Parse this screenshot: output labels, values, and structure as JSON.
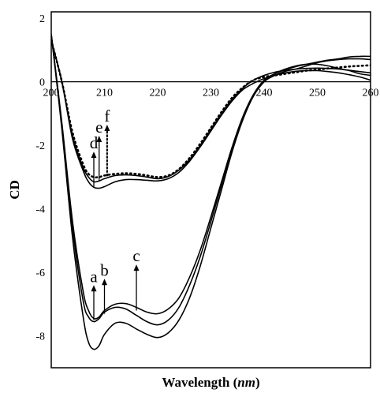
{
  "chart_data": {
    "type": "line",
    "title": "",
    "xlabel_main": "Wavelength (",
    "xlabel_unit": "nm",
    "xlabel_close": ")",
    "ylabel": "CD",
    "xlim": [
      200,
      260
    ],
    "ylim": [
      -9,
      2.2
    ],
    "x_ticks": [
      200,
      210,
      220,
      230,
      240,
      250,
      260
    ],
    "x_tick_labels": [
      "200",
      "210",
      "220",
      "230",
      "240",
      "250",
      "260"
    ],
    "y_ticks": [
      2,
      0,
      -2,
      -4,
      -6,
      -8
    ],
    "y_tick_labels": [
      "2",
      "0",
      "-2",
      "-4",
      "-6",
      "-8"
    ],
    "grid": false,
    "legend": "none",
    "series": [
      {
        "label": "a",
        "style": "solid",
        "points": [
          [
            200,
            1.5
          ],
          [
            202,
            -1.5
          ],
          [
            204,
            -4.9
          ],
          [
            206,
            -7.4
          ],
          [
            207,
            -8.2
          ],
          [
            208,
            -8.42
          ],
          [
            209,
            -8.3
          ],
          [
            210,
            -7.95
          ],
          [
            212,
            -7.6
          ],
          [
            214,
            -7.6
          ],
          [
            216,
            -7.78
          ],
          [
            218,
            -7.95
          ],
          [
            220,
            -8.05
          ],
          [
            222,
            -7.9
          ],
          [
            224,
            -7.5
          ],
          [
            226,
            -6.8
          ],
          [
            228,
            -5.8
          ],
          [
            230,
            -4.6
          ],
          [
            232,
            -3.4
          ],
          [
            234,
            -2.2
          ],
          [
            236,
            -1.2
          ],
          [
            238,
            -0.45
          ],
          [
            240,
            0.0
          ],
          [
            242,
            0.25
          ],
          [
            244,
            0.4
          ],
          [
            246,
            0.5
          ],
          [
            248,
            0.55
          ],
          [
            250,
            0.55
          ],
          [
            252,
            0.5
          ],
          [
            254,
            0.42
          ],
          [
            256,
            0.35
          ],
          [
            258,
            0.25
          ],
          [
            260,
            0.2
          ]
        ]
      },
      {
        "label": "b",
        "style": "solid",
        "points": [
          [
            200,
            1.5
          ],
          [
            202,
            -1.4
          ],
          [
            204,
            -4.6
          ],
          [
            206,
            -6.9
          ],
          [
            207,
            -7.4
          ],
          [
            208,
            -7.55
          ],
          [
            209,
            -7.45
          ],
          [
            210,
            -7.25
          ],
          [
            212,
            -7.1
          ],
          [
            214,
            -7.15
          ],
          [
            216,
            -7.35
          ],
          [
            218,
            -7.55
          ],
          [
            220,
            -7.65
          ],
          [
            222,
            -7.5
          ],
          [
            224,
            -7.1
          ],
          [
            226,
            -6.4
          ],
          [
            228,
            -5.5
          ],
          [
            230,
            -4.4
          ],
          [
            232,
            -3.25
          ],
          [
            234,
            -2.1
          ],
          [
            236,
            -1.15
          ],
          [
            238,
            -0.45
          ],
          [
            240,
            0.0
          ],
          [
            242,
            0.2
          ],
          [
            244,
            0.33
          ],
          [
            246,
            0.4
          ],
          [
            248,
            0.5
          ],
          [
            250,
            0.6
          ],
          [
            252,
            0.66
          ],
          [
            254,
            0.7
          ],
          [
            256,
            0.72
          ],
          [
            258,
            0.72
          ],
          [
            260,
            0.7
          ]
        ]
      },
      {
        "label": "c",
        "style": "solid",
        "points": [
          [
            200,
            1.5
          ],
          [
            202,
            -1.3
          ],
          [
            204,
            -4.4
          ],
          [
            206,
            -6.6
          ],
          [
            207,
            -7.2
          ],
          [
            208,
            -7.45
          ],
          [
            209,
            -7.4
          ],
          [
            210,
            -7.2
          ],
          [
            212,
            -7.0
          ],
          [
            214,
            -6.98
          ],
          [
            216,
            -7.1
          ],
          [
            218,
            -7.25
          ],
          [
            220,
            -7.3
          ],
          [
            222,
            -7.15
          ],
          [
            224,
            -6.8
          ],
          [
            226,
            -6.15
          ],
          [
            228,
            -5.3
          ],
          [
            230,
            -4.25
          ],
          [
            232,
            -3.15
          ],
          [
            234,
            -2.05
          ],
          [
            236,
            -1.1
          ],
          [
            238,
            -0.4
          ],
          [
            240,
            0.05
          ],
          [
            242,
            0.25
          ],
          [
            244,
            0.38
          ],
          [
            246,
            0.48
          ],
          [
            248,
            0.55
          ],
          [
            250,
            0.62
          ],
          [
            252,
            0.68
          ],
          [
            254,
            0.72
          ],
          [
            256,
            0.78
          ],
          [
            258,
            0.8
          ],
          [
            260,
            0.8
          ]
        ]
      },
      {
        "label": "d",
        "style": "solid",
        "points": [
          [
            200,
            1.3
          ],
          [
            202,
            0.0
          ],
          [
            204,
            -1.8
          ],
          [
            206,
            -2.8
          ],
          [
            207,
            -3.15
          ],
          [
            208,
            -3.32
          ],
          [
            209,
            -3.35
          ],
          [
            210,
            -3.3
          ],
          [
            212,
            -3.15
          ],
          [
            214,
            -3.08
          ],
          [
            216,
            -3.08
          ],
          [
            218,
            -3.1
          ],
          [
            220,
            -3.12
          ],
          [
            222,
            -3.05
          ],
          [
            224,
            -2.85
          ],
          [
            226,
            -2.5
          ],
          [
            228,
            -2.05
          ],
          [
            230,
            -1.55
          ],
          [
            232,
            -1.05
          ],
          [
            234,
            -0.6
          ],
          [
            236,
            -0.25
          ],
          [
            238,
            -0.05
          ],
          [
            240,
            0.1
          ],
          [
            242,
            0.2
          ],
          [
            244,
            0.28
          ],
          [
            246,
            0.33
          ],
          [
            248,
            0.35
          ],
          [
            250,
            0.35
          ],
          [
            252,
            0.32
          ],
          [
            254,
            0.28
          ],
          [
            256,
            0.22
          ],
          [
            258,
            0.15
          ],
          [
            260,
            0.05
          ]
        ]
      },
      {
        "label": "e",
        "style": "solid",
        "points": [
          [
            200,
            1.3
          ],
          [
            202,
            0.0
          ],
          [
            204,
            -1.7
          ],
          [
            206,
            -2.7
          ],
          [
            207,
            -3.0
          ],
          [
            208,
            -3.15
          ],
          [
            209,
            -3.12
          ],
          [
            210,
            -3.05
          ],
          [
            212,
            -2.95
          ],
          [
            214,
            -2.93
          ],
          [
            216,
            -2.95
          ],
          [
            218,
            -3.0
          ],
          [
            220,
            -3.05
          ],
          [
            222,
            -2.98
          ],
          [
            224,
            -2.78
          ],
          [
            226,
            -2.45
          ],
          [
            228,
            -2.0
          ],
          [
            230,
            -1.5
          ],
          [
            232,
            -1.0
          ],
          [
            234,
            -0.55
          ],
          [
            236,
            -0.2
          ],
          [
            238,
            0.05
          ],
          [
            240,
            0.2
          ],
          [
            242,
            0.3
          ],
          [
            244,
            0.36
          ],
          [
            246,
            0.4
          ],
          [
            248,
            0.42
          ],
          [
            250,
            0.43
          ],
          [
            252,
            0.42
          ],
          [
            254,
            0.4
          ],
          [
            256,
            0.36
          ],
          [
            258,
            0.32
          ],
          [
            260,
            0.28
          ]
        ]
      },
      {
        "label": "f",
        "style": "dotted",
        "points": [
          [
            200,
            1.3
          ],
          [
            202,
            0.0
          ],
          [
            204,
            -1.6
          ],
          [
            206,
            -2.6
          ],
          [
            207,
            -2.9
          ],
          [
            208,
            -3.0
          ],
          [
            209,
            -3.0
          ],
          [
            210,
            -2.95
          ],
          [
            212,
            -2.9
          ],
          [
            214,
            -2.88
          ],
          [
            216,
            -2.9
          ],
          [
            218,
            -2.95
          ],
          [
            220,
            -3.0
          ],
          [
            222,
            -2.95
          ],
          [
            224,
            -2.75
          ],
          [
            226,
            -2.4
          ],
          [
            228,
            -1.95
          ],
          [
            230,
            -1.45
          ],
          [
            232,
            -0.95
          ],
          [
            234,
            -0.5
          ],
          [
            236,
            -0.18
          ],
          [
            238,
            0.05
          ],
          [
            240,
            0.15
          ],
          [
            242,
            0.2
          ],
          [
            244,
            0.25
          ],
          [
            246,
            0.3
          ],
          [
            248,
            0.35
          ],
          [
            250,
            0.38
          ],
          [
            252,
            0.42
          ],
          [
            254,
            0.45
          ],
          [
            256,
            0.48
          ],
          [
            258,
            0.5
          ],
          [
            260,
            0.52
          ]
        ]
      }
    ],
    "annotations": [
      {
        "label": "a",
        "x": 208,
        "y_tail": -7.5,
        "y_head": -6.4,
        "style": "solid"
      },
      {
        "label": "b",
        "x": 210,
        "y_tail": -7.3,
        "y_head": -6.2,
        "style": "solid"
      },
      {
        "label": "c",
        "x": 216,
        "y_tail": -7.2,
        "y_head": -5.75,
        "style": "solid"
      },
      {
        "label": "d",
        "x": 208,
        "y_tail": -3.3,
        "y_head": -2.2,
        "style": "solid"
      },
      {
        "label": "e",
        "x": 209,
        "y_tail": -3.1,
        "y_head": -1.7,
        "style": "solid"
      },
      {
        "label": "f",
        "x": 210.5,
        "y_tail": -2.95,
        "y_head": -1.35,
        "style": "dotted"
      }
    ]
  }
}
